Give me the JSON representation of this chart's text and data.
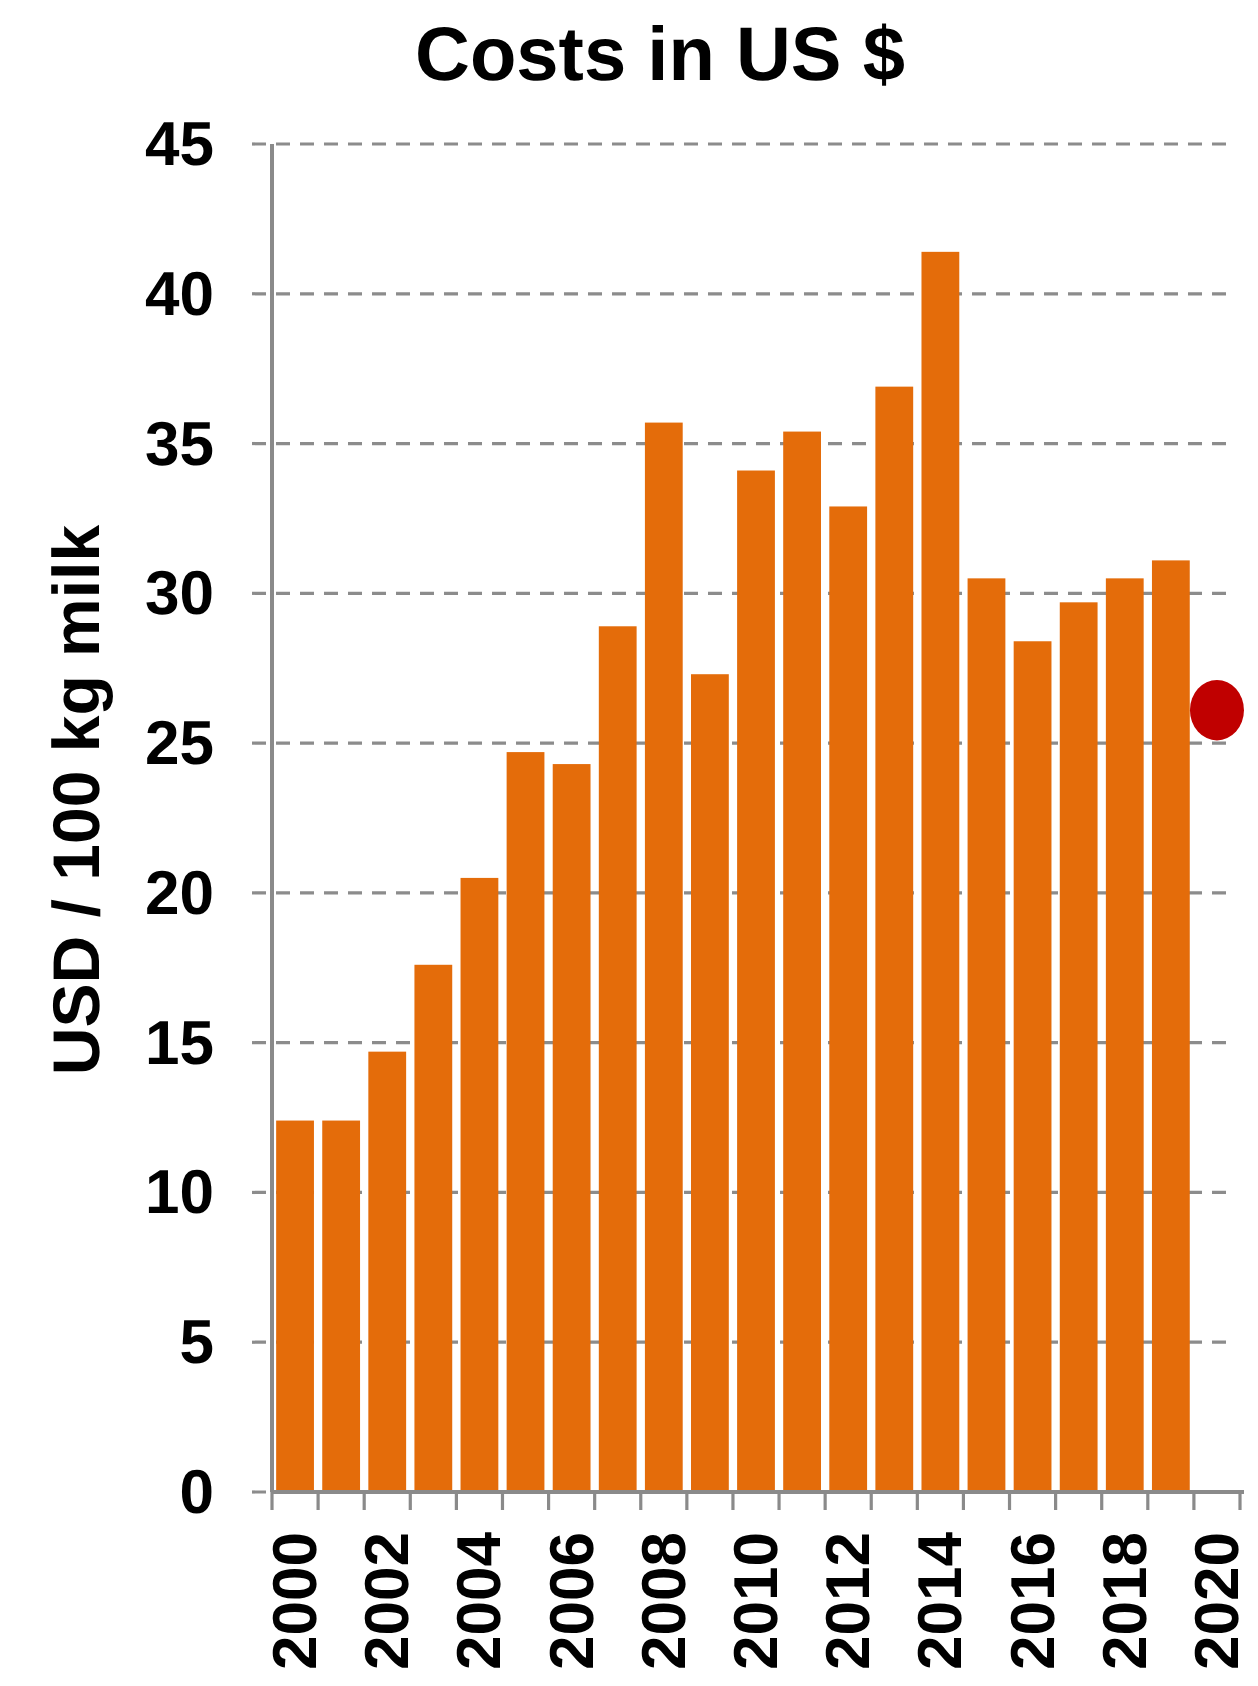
{
  "chart_data": {
    "type": "bar",
    "title": "Costs in US $",
    "ylabel": "USD / 100 kg milk",
    "categories": [
      "2000",
      null,
      "2002",
      null,
      "2004",
      null,
      "2006",
      null,
      "2008",
      null,
      "2010",
      null,
      "2012",
      null,
      "2014",
      null,
      "2016",
      null,
      "2018",
      null,
      "2020"
    ],
    "series": [
      {
        "color": "#e46c0a",
        "values": [
          12.4,
          12.4,
          14.7,
          17.6,
          20.5,
          24.7,
          24.3,
          28.9,
          35.7,
          27.3,
          34.1,
          35.4,
          32.9,
          36.9,
          41.4,
          30.5,
          28.4,
          29.7,
          30.5,
          31.1,
          null
        ]
      },
      {
        "type": "scatter",
        "color": "#c00000",
        "marker": "circle",
        "values": [
          null,
          null,
          null,
          null,
          null,
          null,
          null,
          null,
          null,
          null,
          null,
          null,
          null,
          null,
          null,
          null,
          null,
          null,
          null,
          null,
          26.1
        ]
      }
    ],
    "ylim": [
      0,
      45
    ],
    "yticks": [
      0,
      5,
      10,
      15,
      20,
      25,
      30,
      35,
      40,
      45
    ],
    "grid": "y"
  }
}
